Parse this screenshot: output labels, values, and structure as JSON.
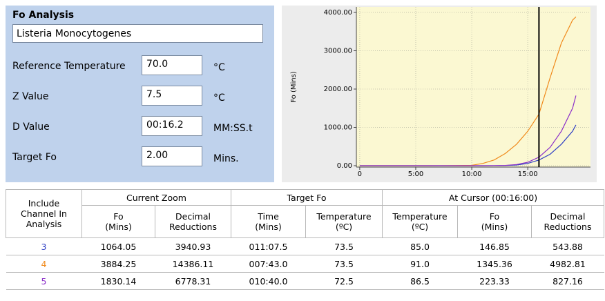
{
  "panel": {
    "title": "Fo Analysis",
    "organism": "Listeria Monocytogenes",
    "fields": [
      {
        "label": "Reference Temperature",
        "value": "70.0",
        "unit": "°C"
      },
      {
        "label": "Z Value",
        "value": "7.5",
        "unit": "°C"
      },
      {
        "label": "D Value",
        "value": "00:16.2",
        "unit": "MM:SS.t"
      },
      {
        "label": "Target Fo",
        "value": "2.00",
        "unit": "Mins."
      }
    ]
  },
  "chart_data": {
    "type": "line",
    "y_label": "Fo (Mins)",
    "x": [
      0,
      2,
      4,
      6,
      8,
      10,
      11,
      12,
      13,
      14,
      15,
      16,
      17,
      18,
      19,
      19.3
    ],
    "series": [
      {
        "color": "#2f3fc4",
        "values": [
          0,
          0,
          0,
          0,
          0,
          0,
          0,
          1,
          5,
          18,
          60,
          147,
          300,
          560,
          900,
          1064
        ]
      },
      {
        "color": "#f08a1c",
        "values": [
          0,
          0,
          0,
          0,
          2,
          10,
          60,
          150,
          320,
          560,
          900,
          1345,
          2300,
          3200,
          3800,
          3884
        ]
      },
      {
        "color": "#8b2fc9",
        "values": [
          0,
          0,
          0,
          0,
          0,
          0,
          0,
          2,
          8,
          30,
          90,
          223,
          480,
          900,
          1500,
          1830
        ]
      }
    ],
    "xlim": [
      -0.3,
      20.6
    ],
    "ylim": [
      -36,
      4144
    ],
    "xticks": [
      0,
      {
        "value": 5,
        "label": "5:00"
      },
      {
        "value": 10,
        "label": "10:00"
      },
      {
        "value": 15,
        "label": "15:00"
      }
    ],
    "yticks": [
      {
        "value": 0,
        "label": "0.00"
      },
      {
        "value": 1000,
        "label": "1000.00"
      },
      {
        "value": 2000,
        "label": "2000.00"
      },
      {
        "value": 3000,
        "label": "3000.00"
      },
      {
        "value": 4000,
        "label": "4000.00"
      }
    ],
    "grid": true,
    "cursor_x": 16
  },
  "table": {
    "row_header": "Include\nChannel In\nAnalysis",
    "groups": [
      "Current Zoom",
      "Target Fo",
      "At Cursor (00:16:00)"
    ],
    "columns": [
      "Fo\n(Mins)",
      "Decimal\nReductions",
      "Time\n(Mins)",
      "Temperature\n(ºC)",
      "Temperature\n(ºC)",
      "Fo\n(Mins)",
      "Decimal\nReductions"
    ],
    "rows": [
      [
        "3",
        "1064.05",
        "3940.93",
        "011:07.5",
        "73.5",
        "85.0",
        "146.85",
        "543.88"
      ],
      [
        "4",
        "3884.25",
        "14386.11",
        "007:43.0",
        "73.5",
        "91.0",
        "1345.36",
        "4982.81"
      ],
      [
        "5",
        "1830.14",
        "6778.31",
        "010:40.0",
        "72.5",
        "86.5",
        "223.33",
        "827.16"
      ]
    ]
  }
}
